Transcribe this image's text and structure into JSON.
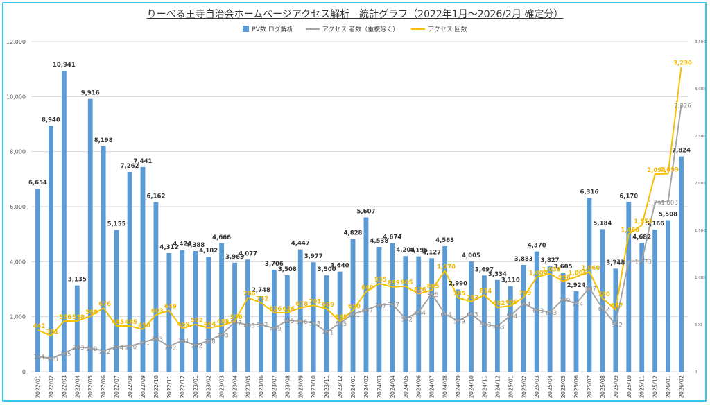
{
  "title": "りーべる王寺自治会ホームページアクセス解析　統計グラフ（2022年1月～2026/2月 確定分）",
  "colors": {
    "bar": "#5b9bd5",
    "visitors": "#a5a5a5",
    "accesses": "#f5c000",
    "border": "#39c6ea"
  },
  "chart_data": {
    "type": "bar",
    "categories": [
      "2022/01",
      "2022/02",
      "2022/03",
      "2022/04",
      "2022/05",
      "2022/06",
      "2022/07",
      "2022/08",
      "2022/09",
      "2022/10",
      "2022/11",
      "2022/12",
      "2023/01",
      "2023/02",
      "2023/03",
      "2023/04",
      "2023/05",
      "2023/06",
      "2023/07",
      "2023/08",
      "2023/09",
      "2023/10",
      "2023/11",
      "2023/12",
      "2024/01",
      "2024/02",
      "2024/03",
      "2024/04",
      "2024/05",
      "2024/06",
      "2024/07",
      "2024/08",
      "2024/09",
      "2024/10",
      "2024/11",
      "2024/12",
      "2025/01",
      "2025/02",
      "2025/03",
      "2025/04",
      "2025/05",
      "2025/06",
      "2025/07",
      "2025/08",
      "2025/09",
      "2025/10",
      "2025/11",
      "2025/12",
      "2026/01",
      "2026/02"
    ],
    "series": [
      {
        "name": "PV数 ログ解析",
        "type": "bar",
        "axis": "left",
        "values": [
          6654,
          8940,
          10941,
          3135,
          9916,
          8198,
          5155,
          7262,
          7441,
          6162,
          4312,
          4424,
          4388,
          4182,
          4666,
          3963,
          4077,
          2748,
          3706,
          3508,
          4447,
          3977,
          3500,
          3640,
          4828,
          5607,
          4538,
          4674,
          4204,
          4195,
          4127,
          4563,
          2990,
          4005,
          3497,
          3334,
          3110,
          3883,
          4370,
          3827,
          3605,
          2924,
          6316,
          5184,
          3748,
          6170,
          4682,
          5166,
          5508,
          7824
        ],
        "labels": [
          "6,654",
          "8,940",
          "10,941",
          "3,135",
          "9,916",
          "8,198",
          "5,155",
          "7,262",
          "7,441",
          "6,162",
          "4,312",
          "4,424",
          "4,388",
          "4,182",
          "4,666",
          "3,963",
          "4,077",
          "2,748",
          "3,706",
          "3,508",
          "4,447",
          "3,977",
          "3,500",
          "3,640",
          "4,828",
          "5,607",
          "4,538",
          "4,674",
          "4,204",
          "4,195",
          "4,127",
          "4,563",
          "2,990",
          "4,005",
          "3,497",
          "3,334",
          "3,110",
          "3,883",
          "4,370",
          "3,827",
          "3,605",
          "2,924",
          "6,316",
          "5,184",
          "3,748",
          "6,170",
          "4,682",
          "5,166",
          "5,508",
          "7,824"
        ]
      },
      {
        "name": "アクセス 者数（重複除く）",
        "type": "line",
        "axis": "right",
        "values": [
          164,
          140,
          195,
          263,
          250,
          222,
          264,
          270,
          311,
          353,
          269,
          331,
          282,
          328,
          393,
          527,
          495,
          502,
          459,
          545,
          536,
          518,
          421,
          515,
          611,
          657,
          707,
          717,
          562,
          634,
          825,
          614,
          539,
          613,
          503,
          483,
          594,
          724,
          653,
          633,
          769,
          724,
          887,
          672,
          502,
          1173,
          1173,
          1795,
          1803,
          2826
        ],
        "labels": [
          "164",
          "140",
          "195",
          "263",
          "250",
          "222",
          "264",
          "270",
          "311",
          "353",
          "269",
          "331",
          "282",
          "328",
          "393",
          "527",
          "495",
          "502",
          "459",
          "545",
          "536",
          "518",
          "421",
          "515",
          "611",
          "657",
          "707",
          "717",
          "562",
          "634",
          "825",
          "614",
          "539",
          "613",
          "503",
          "483",
          "594",
          "724",
          "653",
          "633",
          "769",
          "724",
          "887",
          "672",
          "502",
          "",
          "1,173",
          "1,795",
          "1,803",
          "2,826"
        ]
      },
      {
        "name": "アクセス 回数",
        "type": "line",
        "axis": "right",
        "values": [
          442,
          381,
          536,
          538,
          588,
          676,
          485,
          485,
          450,
          603,
          649,
          459,
          502,
          464,
          488,
          536,
          786,
          732,
          626,
          626,
          678,
          703,
          669,
          535,
          650,
          849,
          935,
          899,
          905,
          826,
          865,
          1070,
          785,
          743,
          814,
          682,
          699,
          789,
          1004,
          1039,
          958,
          1005,
          1060,
          780,
          657,
          1460,
          1553,
          2094,
          2099,
          3230
        ],
        "labels": [
          "442",
          "381",
          "536",
          "538",
          "588",
          "676",
          "485",
          "485",
          "450",
          "603",
          "649",
          "459",
          "502",
          "464",
          "488",
          "536",
          "786",
          "732",
          "626",
          "626",
          "678",
          "703",
          "669",
          "535",
          "650",
          "849",
          "935",
          "899",
          "905",
          "826",
          "865",
          "1,070",
          "785",
          "743",
          "814",
          "682",
          "699",
          "789",
          "1,004",
          "1,039",
          "958",
          "1,005",
          "1,060",
          "780",
          "657",
          "1,460",
          "1,553",
          "2,094",
          "2,099",
          "3,230"
        ]
      }
    ],
    "extra_labels": [
      {
        "category": "2025/09",
        "text": "1,173",
        "series": "アクセス 者数（重複除く）",
        "value": 1173
      }
    ],
    "left_axis": {
      "ticks": [
        0,
        2000,
        4000,
        6000,
        8000,
        10000,
        12000
      ],
      "tick_labels": [
        "0",
        "2,000",
        "4,000",
        "6,000",
        "8,000",
        "10,000",
        "12,000"
      ],
      "ylim": [
        0,
        12000
      ]
    },
    "right_axis": {
      "ticks": [
        0,
        500,
        1000,
        1500,
        2000,
        2500,
        3000,
        3500
      ],
      "tick_labels": [
        "0",
        "500",
        "1,000",
        "1,500",
        "2,000",
        "2,500",
        "3,000",
        "3,500"
      ],
      "ylim": [
        0,
        3500
      ]
    },
    "grid": true,
    "legend_placement": "top-center"
  }
}
